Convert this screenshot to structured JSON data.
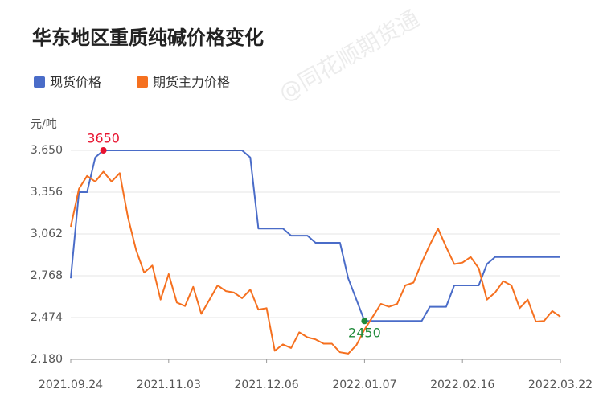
{
  "chart_data": {
    "type": "line",
    "title": "华东地区重质纯碱价格变化",
    "y_unit": "元/吨",
    "watermark": "@同花顺期货通",
    "categories": [
      "2021.09.24",
      null,
      null,
      null,
      null,
      null,
      null,
      null,
      null,
      null,
      null,
      null,
      "2021.11.03",
      null,
      null,
      null,
      null,
      null,
      null,
      null,
      null,
      null,
      null,
      null,
      "2021.12.06",
      null,
      null,
      null,
      null,
      null,
      null,
      null,
      null,
      null,
      null,
      null,
      "2022.01.07",
      null,
      null,
      null,
      null,
      null,
      null,
      null,
      null,
      null,
      null,
      null,
      "2022.02.16",
      null,
      null,
      null,
      null,
      null,
      null,
      null,
      null,
      null,
      null,
      null,
      "2022.03.22"
    ],
    "series": [
      {
        "name": "现货价格",
        "color": "#4a6cc8",
        "values": [
          2750,
          3356,
          3356,
          3600,
          3650,
          3650,
          3650,
          3650,
          3650,
          3650,
          3650,
          3650,
          3650,
          3650,
          3650,
          3650,
          3650,
          3650,
          3650,
          3650,
          3650,
          3650,
          3600,
          3100,
          3100,
          3100,
          3100,
          3050,
          3050,
          3050,
          3000,
          3000,
          3000,
          3000,
          2750,
          2600,
          2450,
          2450,
          2450,
          2450,
          2450,
          2450,
          2450,
          2450,
          2550,
          2550,
          2550,
          2700,
          2700,
          2700,
          2700,
          2850,
          2900,
          2900,
          2900,
          2900,
          2900,
          2900,
          2900,
          2900,
          2900
        ]
      },
      {
        "name": "期货主力价格",
        "color": "#f5701f",
        "values": [
          3113,
          3380,
          3470,
          3430,
          3500,
          3430,
          3490,
          3180,
          2950,
          2790,
          2840,
          2600,
          2780,
          2580,
          2555,
          2690,
          2500,
          2600,
          2700,
          2660,
          2650,
          2610,
          2670,
          2530,
          2540,
          2240,
          2285,
          2260,
          2370,
          2335,
          2320,
          2290,
          2290,
          2230,
          2220,
          2280,
          2390,
          2480,
          2570,
          2550,
          2570,
          2700,
          2720,
          2860,
          2985,
          3100,
          2970,
          2850,
          2860,
          2900,
          2820,
          2600,
          2650,
          2730,
          2700,
          2540,
          2600,
          2446,
          2450,
          2520,
          2480
        ]
      }
    ],
    "ylim": [
      2180,
      3650
    ],
    "yticks": [
      {
        "value": 2180,
        "label": "2,180"
      },
      {
        "value": 2474,
        "label": "2,474"
      },
      {
        "value": 2768,
        "label": "2,768"
      },
      {
        "value": 3062,
        "label": "3,062"
      },
      {
        "value": 3356,
        "label": "3,356"
      },
      {
        "value": 3650,
        "label": "3,650"
      }
    ],
    "grid": true,
    "max_label_color": "#e8132f",
    "min_label_color": "#1f8a3a"
  }
}
